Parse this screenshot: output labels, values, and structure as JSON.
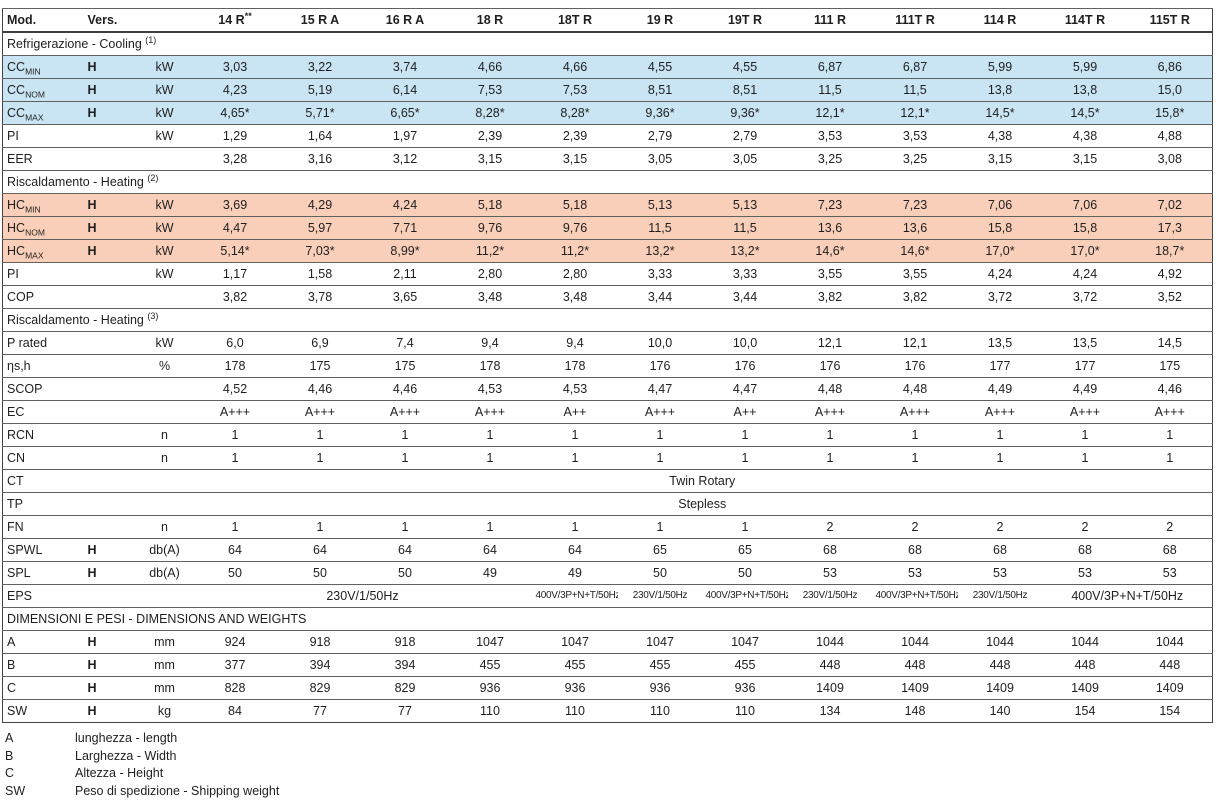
{
  "colors": {
    "cooling_row_bg": "#c9e5f4",
    "heating_row_bg": "#f9cfba",
    "border": "#606060"
  },
  "table": {
    "header": {
      "mod_label": "Mod.",
      "vers_label": "Vers.",
      "unit_label": "",
      "models": [
        {
          "label": "14 R",
          "sup": "**"
        },
        {
          "label": "15 R A"
        },
        {
          "label": "16 R A"
        },
        {
          "label": "18 R"
        },
        {
          "label": "18T R"
        },
        {
          "label": "19 R"
        },
        {
          "label": "19T R"
        },
        {
          "label": "111 R"
        },
        {
          "label": "111T R"
        },
        {
          "label": "114 R"
        },
        {
          "label": "114T R"
        },
        {
          "label": "115T R"
        }
      ]
    },
    "rows": [
      {
        "type": "section",
        "label": "Refrigerazione - Cooling",
        "sup": "(1)"
      },
      {
        "type": "data",
        "label": "CC",
        "sub": "MIN",
        "vers": "H",
        "unit": "kW",
        "hl": "cooling",
        "values": [
          "3,03",
          "3,22",
          "3,74",
          "4,66",
          "4,66",
          "4,55",
          "4,55",
          "6,87",
          "6,87",
          "5,99",
          "5,99",
          "6,86"
        ]
      },
      {
        "type": "data",
        "label": "CC",
        "sub": "NOM",
        "vers": "H",
        "unit": "kW",
        "hl": "cooling",
        "values": [
          "4,23",
          "5,19",
          "6,14",
          "7,53",
          "7,53",
          "8,51",
          "8,51",
          "11,5",
          "11,5",
          "13,8",
          "13,8",
          "15,0"
        ]
      },
      {
        "type": "data",
        "label": "CC",
        "sub": "MAX",
        "vers": "H",
        "unit": "kW",
        "hl": "cooling",
        "values": [
          "4,65*",
          "5,71*",
          "6,65*",
          "8,28*",
          "8,28*",
          "9,36*",
          "9,36*",
          "12,1*",
          "12,1*",
          "14,5*",
          "14,5*",
          "15,8*"
        ]
      },
      {
        "type": "data",
        "label": "PI",
        "unit": "kW",
        "values": [
          "1,29",
          "1,64",
          "1,97",
          "2,39",
          "2,39",
          "2,79",
          "2,79",
          "3,53",
          "3,53",
          "4,38",
          "4,38",
          "4,88"
        ]
      },
      {
        "type": "data",
        "label": "EER",
        "values": [
          "3,28",
          "3,16",
          "3,12",
          "3,15",
          "3,15",
          "3,05",
          "3,05",
          "3,25",
          "3,25",
          "3,15",
          "3,15",
          "3,08"
        ]
      },
      {
        "type": "section",
        "label": "Riscaldamento - Heating",
        "sup": "(2)"
      },
      {
        "type": "data",
        "label": "HC",
        "sub": "MIN",
        "vers": "H",
        "unit": "kW",
        "hl": "heating",
        "values": [
          "3,69",
          "4,29",
          "4,24",
          "5,18",
          "5,18",
          "5,13",
          "5,13",
          "7,23",
          "7,23",
          "7,06",
          "7,06",
          "7,02"
        ]
      },
      {
        "type": "data",
        "label": "HC",
        "sub": "NOM",
        "vers": "H",
        "unit": "kW",
        "hl": "heating",
        "values": [
          "4,47",
          "5,97",
          "7,71",
          "9,76",
          "9,76",
          "11,5",
          "11,5",
          "13,6",
          "13,6",
          "15,8",
          "15,8",
          "17,3"
        ]
      },
      {
        "type": "data",
        "label": "HC",
        "sub": "MAX",
        "vers": "H",
        "unit": "kW",
        "hl": "heating",
        "values": [
          "5,14*",
          "7,03*",
          "8,99*",
          "11,2*",
          "11,2*",
          "13,2*",
          "13,2*",
          "14,6*",
          "14,6*",
          "17,0*",
          "17,0*",
          "18,7*"
        ]
      },
      {
        "type": "data",
        "label": "PI",
        "unit": "kW",
        "values": [
          "1,17",
          "1,58",
          "2,11",
          "2,80",
          "2,80",
          "3,33",
          "3,33",
          "3,55",
          "3,55",
          "4,24",
          "4,24",
          "4,92"
        ]
      },
      {
        "type": "data",
        "label": "COP",
        "values": [
          "3,82",
          "3,78",
          "3,65",
          "3,48",
          "3,48",
          "3,44",
          "3,44",
          "3,82",
          "3,82",
          "3,72",
          "3,72",
          "3,52"
        ]
      },
      {
        "type": "section",
        "label": "Riscaldamento - Heating",
        "sup": "(3)"
      },
      {
        "type": "data",
        "label": "P rated",
        "unit": "kW",
        "values": [
          "6,0",
          "6,9",
          "7,4",
          "9,4",
          "9,4",
          "10,0",
          "10,0",
          "12,1",
          "12,1",
          "13,5",
          "13,5",
          "14,5"
        ]
      },
      {
        "type": "data",
        "label": "ηs,h",
        "unit": "%",
        "values": [
          "178",
          "175",
          "175",
          "178",
          "178",
          "176",
          "176",
          "176",
          "176",
          "177",
          "177",
          "175"
        ]
      },
      {
        "type": "data",
        "label": "SCOP",
        "values": [
          "4,52",
          "4,46",
          "4,46",
          "4,53",
          "4,53",
          "4,47",
          "4,47",
          "4,48",
          "4,48",
          "4,49",
          "4,49",
          "4,46"
        ]
      },
      {
        "type": "data",
        "label": "EC",
        "values": [
          "A+++",
          "A+++",
          "A+++",
          "A+++",
          "A++",
          "A+++",
          "A++",
          "A+++",
          "A+++",
          "A+++",
          "A+++",
          "A+++"
        ]
      },
      {
        "type": "data",
        "label": "RCN",
        "unit": "n",
        "values": [
          "1",
          "1",
          "1",
          "1",
          "1",
          "1",
          "1",
          "1",
          "1",
          "1",
          "1",
          "1"
        ]
      },
      {
        "type": "data",
        "label": "CN",
        "unit": "n",
        "values": [
          "1",
          "1",
          "1",
          "1",
          "1",
          "1",
          "1",
          "1",
          "1",
          "1",
          "1",
          "1"
        ]
      },
      {
        "type": "span",
        "label": "CT",
        "value": "Twin Rotary"
      },
      {
        "type": "span",
        "label": "TP",
        "value": "Stepless"
      },
      {
        "type": "data",
        "label": "FN",
        "unit": "n",
        "values": [
          "1",
          "1",
          "1",
          "1",
          "1",
          "1",
          "1",
          "2",
          "2",
          "2",
          "2",
          "2"
        ]
      },
      {
        "type": "data",
        "label": "SPWL",
        "vers": "H",
        "unit": "db(A)",
        "values": [
          "64",
          "64",
          "64",
          "64",
          "64",
          "65",
          "65",
          "68",
          "68",
          "68",
          "68",
          "68"
        ]
      },
      {
        "type": "data",
        "label": "SPL",
        "vers": "H",
        "unit": "db(A)",
        "values": [
          "50",
          "50",
          "50",
          "49",
          "49",
          "50",
          "50",
          "53",
          "53",
          "53",
          "53",
          "53"
        ]
      },
      {
        "type": "eps",
        "label": "EPS",
        "cells": [
          {
            "text": "230V/1/50Hz",
            "span": 4,
            "small": false
          },
          {
            "text": "400V/3P+N+T/50Hz",
            "span": 1,
            "small": true
          },
          {
            "text": "230V/1/50Hz",
            "span": 1,
            "small": true
          },
          {
            "text": "400V/3P+N+T/50Hz",
            "span": 1,
            "small": true
          },
          {
            "text": "230V/1/50Hz",
            "span": 1,
            "small": true
          },
          {
            "text": "400V/3P+N+T/50Hz",
            "span": 1,
            "small": true
          },
          {
            "text": "230V/1/50Hz",
            "span": 1,
            "small": true
          },
          {
            "text": "400V/3P+N+T/50Hz",
            "span": 2,
            "small": false
          }
        ]
      },
      {
        "type": "section",
        "label": "DIMENSIONI E PESI - DIMENSIONS AND WEIGHTS"
      },
      {
        "type": "data",
        "label": "A",
        "vers": "H",
        "unit": "mm",
        "values": [
          "924",
          "918",
          "918",
          "1047",
          "1047",
          "1047",
          "1047",
          "1044",
          "1044",
          "1044",
          "1044",
          "1044"
        ]
      },
      {
        "type": "data",
        "label": "B",
        "vers": "H",
        "unit": "mm",
        "values": [
          "377",
          "394",
          "394",
          "455",
          "455",
          "455",
          "455",
          "448",
          "448",
          "448",
          "448",
          "448"
        ]
      },
      {
        "type": "data",
        "label": "C",
        "vers": "H",
        "unit": "mm",
        "values": [
          "828",
          "829",
          "829",
          "936",
          "936",
          "936",
          "936",
          "1409",
          "1409",
          "1409",
          "1409",
          "1409"
        ]
      },
      {
        "type": "data",
        "label": "SW",
        "vers": "H",
        "unit": "kg",
        "values": [
          "84",
          "77",
          "77",
          "110",
          "110",
          "110",
          "110",
          "134",
          "148",
          "140",
          "154",
          "154"
        ]
      }
    ]
  },
  "legend": [
    {
      "code": "A",
      "text": "lunghezza - length"
    },
    {
      "code": "B",
      "text": "Larghezza - Width"
    },
    {
      "code": "C",
      "text": "Altezza - Height"
    },
    {
      "code": "SW",
      "text": "Peso di spedizione - Shipping weight"
    }
  ]
}
